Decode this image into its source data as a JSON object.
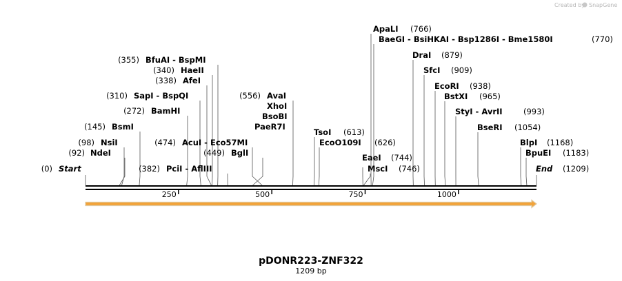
{
  "watermark": {
    "prefix": "Created by",
    "brand": "SnapGene",
    "icon": "snapgene-logo-icon"
  },
  "title": "pDONR223-ZNF322",
  "subtitle": "1209 bp",
  "total_length": 1209,
  "colors": {
    "line": "#000000",
    "leader": "#555555",
    "feature_fill": "#f2a33a",
    "feature_edge": "#e0c9a0",
    "watermark": "#b8b8b8"
  },
  "ticks": [
    {
      "value": 250,
      "label": "250"
    },
    {
      "value": 500,
      "label": "500"
    },
    {
      "value": 750,
      "label": "750"
    },
    {
      "value": 1000,
      "label": "1000"
    }
  ],
  "feature": {
    "start": 1,
    "end": 1209,
    "direction": "forward"
  },
  "sites": [
    {
      "text": "(0)",
      "name": "Start",
      "cut": 1,
      "side": "pos-left",
      "italic": true
    },
    {
      "text": "(92)",
      "name": "NdeI",
      "cut": 92,
      "side": "pos-left"
    },
    {
      "text": "(98)",
      "name": "NsiI",
      "cut": 98,
      "side": "pos-left"
    },
    {
      "text": "(145)",
      "name": "BsmI",
      "cut": 145,
      "side": "pos-left"
    },
    {
      "text": "(272)",
      "name": "BamHI",
      "cut": 272,
      "side": "pos-left"
    },
    {
      "text": "(310)",
      "name": "SapI  -  BspQI",
      "cut": 310,
      "side": "pos-left"
    },
    {
      "text": "(338)",
      "name": "AfeI",
      "cut": 338,
      "side": "pos-left"
    },
    {
      "text": "(340)",
      "name": "HaeII",
      "cut": 340,
      "side": "pos-left"
    },
    {
      "text": "(355)",
      "name": "BfuAI  -  BspMI",
      "cut": 355,
      "side": "pos-left"
    },
    {
      "text": "(382)",
      "name": "PciI  -  AflIII",
      "cut": 382,
      "side": "pos-left"
    },
    {
      "text": "(474)",
      "name": "AcuI  -  Eco57MI",
      "cut": 474,
      "side": "pos-left"
    },
    {
      "text": "(449)",
      "name": "BglI",
      "cut": 449,
      "side": "pos-left"
    },
    {
      "text": "(556)",
      "name": "AvaI",
      "cut": 556,
      "side": "pos-left"
    },
    {
      "text": "",
      "name": "XhoI",
      "cut": 556,
      "side": "pos-left"
    },
    {
      "text": "",
      "name": "BsoBI",
      "cut": 556,
      "side": "pos-left"
    },
    {
      "text": "",
      "name": "PaeR7I",
      "cut": 556,
      "side": "pos-left"
    },
    {
      "text": "(613)",
      "name": "TsoI",
      "cut": 613,
      "side": "pos-right"
    },
    {
      "text": "(626)",
      "name": "EcoO109I",
      "cut": 626,
      "side": "pos-right"
    },
    {
      "text": "(744)",
      "name": "EaeI",
      "cut": 744,
      "side": "pos-right"
    },
    {
      "text": "(746)",
      "name": "MscI",
      "cut": 746,
      "side": "pos-right"
    },
    {
      "text": "(766)",
      "name": "ApaLI",
      "cut": 766,
      "side": "pos-right"
    },
    {
      "text": "(770)",
      "name": "BaeGI  -  BsiHKAI  -  Bsp1286I  -  Bme1580I",
      "cut": 770,
      "side": "pos-right"
    },
    {
      "text": "(879)",
      "name": "DraI",
      "cut": 879,
      "side": "pos-right"
    },
    {
      "text": "(909)",
      "name": "SfcI",
      "cut": 909,
      "side": "pos-right"
    },
    {
      "text": "(938)",
      "name": "EcoRI",
      "cut": 938,
      "side": "pos-right"
    },
    {
      "text": "(965)",
      "name": "BstXI",
      "cut": 965,
      "side": "pos-right"
    },
    {
      "text": "(993)",
      "name": "StyI  -  AvrII",
      "cut": 993,
      "side": "pos-right"
    },
    {
      "text": "(1054)",
      "name": "BseRI",
      "cut": 1054,
      "side": "pos-right"
    },
    {
      "text": "(1168)",
      "name": "BlpI",
      "cut": 1168,
      "side": "pos-right"
    },
    {
      "text": "(1183)",
      "name": "BpuEI",
      "cut": 1183,
      "side": "pos-right"
    },
    {
      "text": "(1209)",
      "name": "End",
      "cut": 1209,
      "side": "pos-right",
      "italic": true
    }
  ]
}
